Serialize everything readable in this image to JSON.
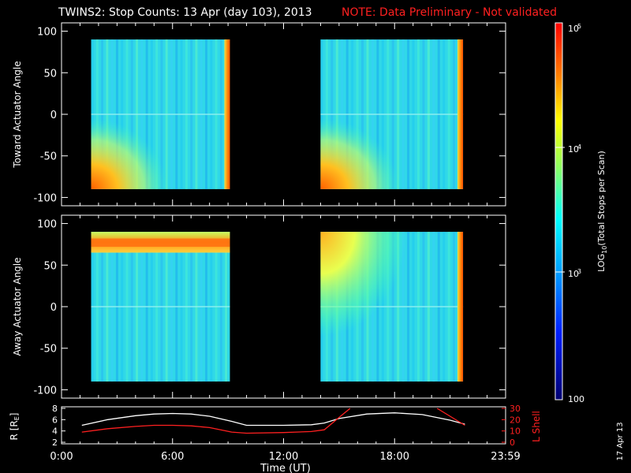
{
  "header": {
    "title": "TWINS2: Stop Counts: 13 Apr (day 103), 2013",
    "note": "NOTE: Data Preliminary - Not validated"
  },
  "colors": {
    "background": "#000000",
    "text": "#ffffff",
    "note_red": "#ff2020",
    "r_trace": "#ffffff",
    "lshell_trace": "#ff2020"
  },
  "date_stamp": "17 Apr 13",
  "chart_data": [
    {
      "type": "heatmap",
      "panel": "toward",
      "ylabel": "Toward Actuator Angle",
      "ylim": [
        -110,
        110
      ],
      "yticks": [
        100,
        50,
        0,
        -50,
        -100
      ],
      "xlim": [
        0,
        24
      ],
      "angle_range": [
        -90,
        90
      ],
      "blocks": [
        {
          "start_hour": 1.6,
          "end_hour": 9.1,
          "hot_region": "bottom-left",
          "edge": "right"
        },
        {
          "start_hour": 14.0,
          "end_hour": 21.7,
          "hot_region": "bottom-left",
          "edge": "right"
        }
      ],
      "grid": false
    },
    {
      "type": "heatmap",
      "panel": "away",
      "ylabel": "Away Actuator Angle",
      "ylim": [
        -110,
        110
      ],
      "yticks": [
        100,
        50,
        0,
        -50,
        -100
      ],
      "xlim": [
        0,
        24
      ],
      "angle_range": [
        -90,
        90
      ],
      "blocks": [
        {
          "start_hour": 1.6,
          "end_hour": 9.1,
          "hot_region": "top-band",
          "edge": "none"
        },
        {
          "start_hour": 14.0,
          "end_hour": 21.7,
          "hot_region": "top-left",
          "edge": "right"
        }
      ],
      "grid": false
    },
    {
      "type": "line",
      "panel": "orbit",
      "ylabel_left": "R [RE]",
      "ylabel_right": "L Shell",
      "ylim_left": [
        2,
        8
      ],
      "yticks_left": [
        "2",
        "4",
        "6",
        "8"
      ],
      "ylim_right": [
        0,
        30
      ],
      "yticks_right": [
        "0",
        "10",
        "20",
        "30"
      ],
      "xlabel": "Time (UT)",
      "xlim": [
        0,
        24
      ],
      "xticks": [
        {
          "hour": 0,
          "label": "0:00"
        },
        {
          "hour": 6,
          "label": "6:00"
        },
        {
          "hour": 12,
          "label": "12:00"
        },
        {
          "hour": 18,
          "label": "18:00"
        },
        {
          "hour": 24,
          "label": "23:59"
        }
      ],
      "series": [
        {
          "axis": "left",
          "x": [
            1.1,
            2.5,
            4,
            5,
            6,
            7,
            8,
            9.2,
            10,
            12,
            13.5,
            14.2,
            15,
            16.5,
            18,
            19.5,
            21,
            21.8
          ],
          "y": [
            5.0,
            6.0,
            6.7,
            7.0,
            7.1,
            7.0,
            6.6,
            5.7,
            5.0,
            5.0,
            5.1,
            5.4,
            6.2,
            7.0,
            7.2,
            6.9,
            5.9,
            5.2
          ]
        },
        {
          "axis": "right",
          "x": [
            1.1,
            2.5,
            4,
            5,
            6,
            7,
            8,
            9.2,
            10,
            12,
            13.5,
            14.2,
            15,
            15.6
          ],
          "y": [
            9,
            12,
            14,
            15,
            15,
            14.5,
            13,
            9,
            8,
            8.6,
            9.5,
            11,
            22,
            30
          ]
        },
        {
          "axis": "right",
          "x": [
            20.3,
            21.8
          ],
          "y": [
            30,
            15
          ]
        }
      ]
    },
    {
      "type": "heatmap",
      "panel": "colorbar",
      "ylabel": "LOG10(Total Stops per Scan)",
      "scale": "log",
      "range": [
        100,
        100000
      ],
      "tick_labels": [
        "10",
        "5",
        "10",
        "4",
        "10",
        "3",
        "100"
      ]
    }
  ]
}
